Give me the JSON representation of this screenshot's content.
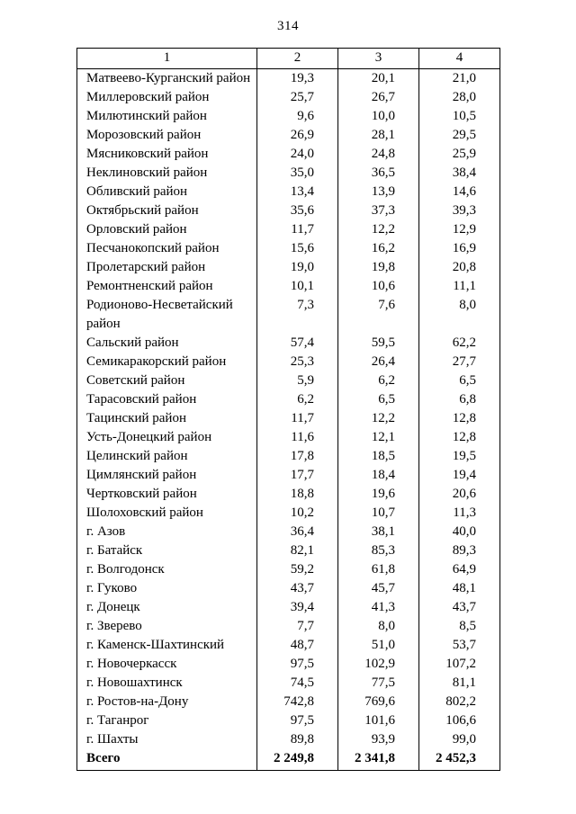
{
  "page_number": "314",
  "table": {
    "headers": [
      "1",
      "2",
      "3",
      "4"
    ],
    "rows": [
      {
        "name": "Матвеево-Курганский район",
        "v1": "19,3",
        "v2": "20,1",
        "v3": "21,0"
      },
      {
        "name": "Миллеровский район",
        "v1": "25,7",
        "v2": "26,7",
        "v3": "28,0"
      },
      {
        "name": "Милютинский район",
        "v1": "9,6",
        "v2": "10,0",
        "v3": "10,5"
      },
      {
        "name": "Морозовский район",
        "v1": "26,9",
        "v2": "28,1",
        "v3": "29,5"
      },
      {
        "name": "Мясниковский район",
        "v1": "24,0",
        "v2": "24,8",
        "v3": "25,9"
      },
      {
        "name": "Неклиновский район",
        "v1": "35,0",
        "v2": "36,5",
        "v3": "38,4"
      },
      {
        "name": "Обливский район",
        "v1": "13,4",
        "v2": "13,9",
        "v3": "14,6"
      },
      {
        "name": "Октябрьский район",
        "v1": "35,6",
        "v2": "37,3",
        "v3": "39,3"
      },
      {
        "name": "Орловский район",
        "v1": "11,7",
        "v2": "12,2",
        "v3": "12,9"
      },
      {
        "name": "Песчанокопский район",
        "v1": "15,6",
        "v2": "16,2",
        "v3": "16,9"
      },
      {
        "name": "Пролетарский район",
        "v1": "19,0",
        "v2": "19,8",
        "v3": "20,8"
      },
      {
        "name": "Ремонтненский район",
        "v1": "10,1",
        "v2": "10,6",
        "v3": "11,1"
      },
      {
        "name": "Родионово-Несветайский район",
        "v1": "7,3",
        "v2": "7,6",
        "v3": "8,0"
      },
      {
        "name": "Сальский район",
        "v1": "57,4",
        "v2": "59,5",
        "v3": "62,2"
      },
      {
        "name": "Семикаракорский район",
        "v1": "25,3",
        "v2": "26,4",
        "v3": "27,7"
      },
      {
        "name": "Советский район",
        "v1": "5,9",
        "v2": "6,2",
        "v3": "6,5"
      },
      {
        "name": "Тарасовский район",
        "v1": "6,2",
        "v2": "6,5",
        "v3": "6,8"
      },
      {
        "name": "Тацинский район",
        "v1": "11,7",
        "v2": "12,2",
        "v3": "12,8"
      },
      {
        "name": "Усть-Донецкий район",
        "v1": "11,6",
        "v2": "12,1",
        "v3": "12,8"
      },
      {
        "name": "Целинский район",
        "v1": "17,8",
        "v2": "18,5",
        "v3": "19,5"
      },
      {
        "name": "Цимлянский район",
        "v1": "17,7",
        "v2": "18,4",
        "v3": "19,4"
      },
      {
        "name": "Чертковский район",
        "v1": "18,8",
        "v2": "19,6",
        "v3": "20,6"
      },
      {
        "name": "Шолоховский район",
        "v1": "10,2",
        "v2": "10,7",
        "v3": "11,3"
      },
      {
        "name": "г.  Азов",
        "v1": "36,4",
        "v2": "38,1",
        "v3": "40,0"
      },
      {
        "name": "г.  Батайск",
        "v1": "82,1",
        "v2": "85,3",
        "v3": "89,3"
      },
      {
        "name": "г.  Волгодонск",
        "v1": "59,2",
        "v2": "61,8",
        "v3": "64,9"
      },
      {
        "name": "г.  Гуково",
        "v1": "43,7",
        "v2": "45,7",
        "v3": "48,1"
      },
      {
        "name": "г.  Донецк",
        "v1": "39,4",
        "v2": "41,3",
        "v3": "43,7"
      },
      {
        "name": "г.  Зверево",
        "v1": "7,7",
        "v2": "8,0",
        "v3": "8,5"
      },
      {
        "name": "г.  Каменск-Шахтинский",
        "v1": "48,7",
        "v2": "51,0",
        "v3": "53,7"
      },
      {
        "name": "г.  Новочеркасск",
        "v1": "97,5",
        "v2": "102,9",
        "v3": "107,2"
      },
      {
        "name": "г.  Новошахтинск",
        "v1": "74,5",
        "v2": "77,5",
        "v3": "81,1"
      },
      {
        "name": "г.  Ростов-на-Дону",
        "v1": "742,8",
        "v2": "769,6",
        "v3": "802,2"
      },
      {
        "name": "г.  Таганрог",
        "v1": "97,5",
        "v2": "101,6",
        "v3": "106,6"
      },
      {
        "name": "г.  Шахты",
        "v1": "89,8",
        "v2": "93,9",
        "v3": "99,0"
      }
    ],
    "total": {
      "name": "Всего",
      "v1": "2 249,8",
      "v2": "2 341,8",
      "v3": "2 452,3"
    }
  }
}
